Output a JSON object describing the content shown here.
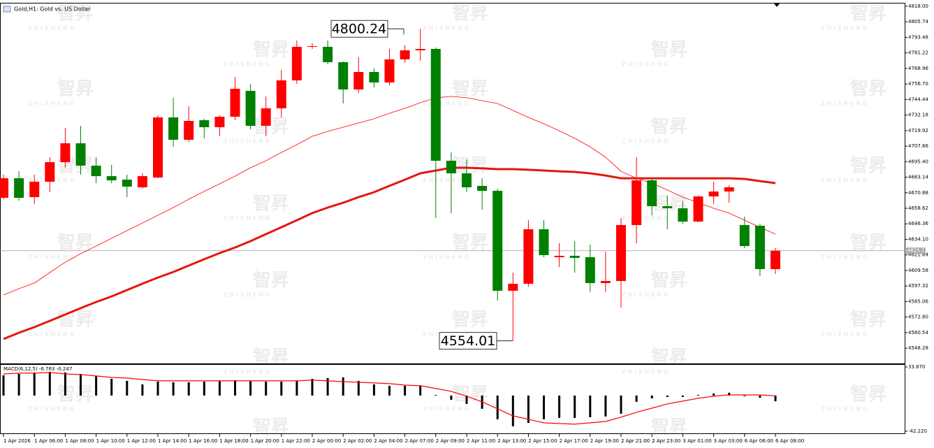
{
  "chart_data": [
    {
      "type": "candlestick",
      "title": "Gold,H1:  Gold vs. US Dollar",
      "watermark": [
        "智昇",
        "Z H I S H E N G"
      ],
      "categories": [
        "1 Apr 2026",
        null,
        "1 Apr 06:00",
        null,
        "1 Apr 08:00",
        null,
        "1 Apr 10:00",
        null,
        "1 Apr 12:00",
        null,
        "1 Apr 14:00",
        null,
        "1 Apr 16:00",
        null,
        "1 Apr 18:00",
        null,
        "1 Apr 20:00",
        null,
        "1 Apr 22:00",
        null,
        "2 Apr 00:00",
        null,
        "2 Apr 02:00",
        null,
        "2 Apr 04:00",
        null,
        "2 Apr 07:00",
        null,
        "2 Apr 09:00",
        null,
        "2 Apr 11:00",
        null,
        "2 Apr 13:00",
        null,
        "2 Apr 15:00",
        null,
        "2 Apr 17:00",
        null,
        "2 Apr 19:00",
        null,
        "2 Apr 21:00",
        null,
        "2 Apr 23:00",
        null,
        "3 Apr 01:00",
        null,
        "3 Apr 03:00",
        null,
        "6 Apr 06:00",
        null,
        "6 Apr 08:00"
      ],
      "open": [
        4666.89,
        4682.33,
        4667.44,
        4679.57,
        4695.01,
        4709.9,
        4692.25,
        4683.98,
        4681.22,
        4675.16,
        4682.88,
        4730.31,
        4712.66,
        4728.1,
        4722.59,
        4730.86,
        4751.26,
        4723.69,
        4737.48,
        4759.54,
        4786.01,
        4786.01,
        4773.88,
        4752.37,
        4766.16,
        4757.88,
        4776.08,
        4783.25,
        4784.35,
        4696.11,
        4686.19,
        4676.26,
        4672.4,
        4593.54,
        4599.05,
        4642.07,
        4620.01,
        4621.11,
        4620.01,
        4599.6,
        4601.26,
        4645.38,
        4680.67,
        4660.27,
        4658.61,
        4648.13,
        4667.99,
        4671.85,
        4645.38,
        4644.83,
        4610.63
      ],
      "high": [
        4685.08,
        4687.84,
        4685.08,
        4698.87,
        4722.04,
        4723.69,
        4698.87,
        4692.81,
        4685.08,
        4686.19,
        4731.96,
        4745.75,
        4739.13,
        4729.2,
        4731.96,
        4762.29,
        4756.78,
        4746.85,
        4767.81,
        4790.97,
        4788.77,
        4790.97,
        4774.43,
        4777.74,
        4768.91,
        4784.35,
        4787.11,
        4800.24,
        4785.46,
        4702.73,
        4697.22,
        4682.33,
        4674.05,
        4607.87,
        4649.24,
        4649.24,
        4631.04,
        4632.69,
        4629.93,
        4624.42,
        4650.89,
        4698.87,
        4682.33,
        4668.54,
        4664.13,
        4668.54,
        4679.57,
        4676.81,
        4651.99,
        4646.48,
        4627.18
      ],
      "low": [
        4665.78,
        4664.68,
        4661.92,
        4671.3,
        4690.6,
        4685.08,
        4678.47,
        4678.47,
        4667.44,
        4674.05,
        4682.33,
        4707.14,
        4711.01,
        4713.76,
        4715.42,
        4728.1,
        4720.93,
        4715.42,
        4730.31,
        4756.78,
        4784.35,
        4772.22,
        4741.34,
        4749.61,
        4754.02,
        4755.68,
        4773.32,
        4774.98,
        4650.89,
        4654.75,
        4671.3,
        4657.51,
        4585.81,
        4554.01,
        4596.84,
        4620.01,
        4612.29,
        4607.87,
        4592.43,
        4592.43,
        4580.3,
        4631.04,
        4653.1,
        4642.07,
        4646.48,
        4647.58,
        4661.92,
        4663.02,
        4627.18,
        4605.12,
        4606.77
      ],
      "close": [
        4682.33,
        4666.89,
        4679.57,
        4695.01,
        4709.9,
        4692.25,
        4683.98,
        4680.67,
        4675.71,
        4683.98,
        4730.31,
        4712.66,
        4727.55,
        4722.59,
        4730.86,
        4752.92,
        4723.69,
        4737.48,
        4759.54,
        4786.01,
        4786.56,
        4773.88,
        4752.37,
        4766.16,
        4757.88,
        4776.08,
        4783.25,
        4784.35,
        4696.11,
        4686.19,
        4675.16,
        4672.4,
        4593.54,
        4599.05,
        4642.07,
        4621.66,
        4621.11,
        4619.46,
        4599.6,
        4601.26,
        4645.38,
        4680.67,
        4660.27,
        4658.61,
        4648.13,
        4667.99,
        4671.85,
        4675.16,
        4628.83,
        4610.63,
        4625.13
      ],
      "up_color": "#ff0000",
      "down_color": "#008000",
      "series": [
        {
          "color": "#ff0000",
          "line_width": 0.8,
          "values": [
            4590.2,
            4595.2,
            4599.6,
            4607.9,
            4616.1,
            4622.8,
            4628.8,
            4634.9,
            4641.0,
            4647.0,
            4653.1,
            4659.2,
            4665.8,
            4671.9,
            4677.9,
            4684.0,
            4690.6,
            4696.1,
            4702.7,
            4708.8,
            4715.4,
            4719.3,
            4722.6,
            4725.9,
            4729.2,
            4733.6,
            4737.5,
            4741.9,
            4745.8,
            4746.9,
            4745.8,
            4743.5,
            4741.3,
            4735.8,
            4730.3,
            4725.3,
            4719.8,
            4713.8,
            4707.1,
            4698.9,
            4687.8,
            4682.3,
            4678.5,
            4673.0,
            4667.4,
            4663.0,
            4658.6,
            4654.8,
            4649.2,
            4643.7,
            4638.2
          ]
        },
        {
          "color": "#e3170d",
          "line_width": 3,
          "values": [
            4555.5,
            4560.4,
            4564.9,
            4569.8,
            4574.8,
            4579.8,
            4584.7,
            4589.1,
            4594.1,
            4599.1,
            4604.0,
            4608.4,
            4613.4,
            4618.4,
            4623.3,
            4627.7,
            4632.7,
            4638.2,
            4643.7,
            4649.2,
            4654.8,
            4659.2,
            4663.0,
            4667.4,
            4671.3,
            4676.3,
            4681.2,
            4686.2,
            4688.4,
            4690.6,
            4690.6,
            4690.1,
            4689.5,
            4689.5,
            4689.0,
            4688.4,
            4687.8,
            4687.3,
            4686.2,
            4684.5,
            4682.3,
            4682.3,
            4682.3,
            4682.3,
            4682.3,
            4682.3,
            4682.3,
            4682.3,
            4681.8,
            4680.1,
            4678.5
          ]
        }
      ],
      "annotations": [
        4800.24,
        4554.01
      ],
      "current_price": 4625.13,
      "ylim": [
        4536.2,
        4820.2
      ],
      "yticks": [
        {
          "value": 4818,
          "label": "4818.00"
        },
        4805.74,
        4793.48,
        4781.22,
        4768.96,
        {
          "value": 4756.7,
          "label": "4756.70"
        },
        4744.44,
        4732.18,
        4719.92,
        4707.66,
        {
          "value": 4695.4,
          "label": "4695.40"
        },
        4683.14,
        4670.88,
        4658.62,
        4646.36,
        {
          "value": 4634.1,
          "label": "4634.10"
        },
        4621.84,
        4609.58,
        4597.32,
        4585.06,
        {
          "value": 4572.8,
          "label": "4572.80"
        },
        4560.54,
        4548.28
      ]
    },
    {
      "type": "macd",
      "label": "MACD(6,12,5) -6.763 -0.247",
      "series": [
        {
          "color": "#000000",
          "values": [
            24.0,
            25.6,
            27.3,
            28.1,
            27.3,
            25.6,
            23.2,
            19.8,
            17.4,
            13.2,
            16.5,
            15.7,
            15.7,
            16.5,
            17.4,
            18.2,
            17.4,
            16.5,
            16.5,
            17.4,
            19.8,
            20.7,
            21.5,
            17.4,
            13.2,
            11.6,
            11.6,
            11.6,
            0.8,
            -5.0,
            -9.9,
            -15.7,
            -28.1,
            -36.4,
            -32.3,
            -28.1,
            -26.5,
            -26.5,
            -25.6,
            -24.8,
            -21.5,
            -7.4,
            -3.3,
            -1.7,
            -1.7,
            0.8,
            2.5,
            3.3,
            -0.8,
            -2.5,
            -6.763
          ]
        },
        {
          "color": "#ff0000",
          "values": [
            25.6,
            26.5,
            26.5,
            27.3,
            25.6,
            24.8,
            23.2,
            21.5,
            20.7,
            19.0,
            17.4,
            17.4,
            17.4,
            17.4,
            17.4,
            17.4,
            17.4,
            17.4,
            17.4,
            17.4,
            18.2,
            17.4,
            16.5,
            15.7,
            14.9,
            14.1,
            12.4,
            11.6,
            8.3,
            5.0,
            -0.8,
            -7.4,
            -15.7,
            -24.0,
            -28.1,
            -32.3,
            -33.1,
            -33.9,
            -32.3,
            -30.6,
            -25.6,
            -19.8,
            -14.9,
            -9.9,
            -6.6,
            -3.3,
            -0.8,
            0.8,
            0.8,
            0.8,
            -0.247
          ]
        }
      ],
      "ylim": [
        -44.7,
        36.35
      ],
      "yticks": [
        {
          "value": 33.87,
          "label": "33.870"
        },
        {
          "value": -42.22,
          "label": "-42.220"
        }
      ]
    }
  ]
}
